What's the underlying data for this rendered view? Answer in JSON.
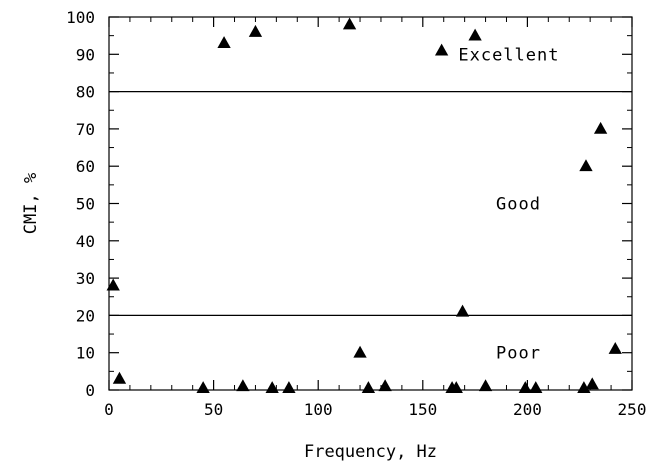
{
  "chart_data": {
    "type": "scatter",
    "title": "",
    "xlabel": "Frequency, Hz",
    "ylabel": "CMI, %",
    "xlim": [
      0,
      250
    ],
    "ylim": [
      0,
      100
    ],
    "x_ticks": [
      0,
      50,
      100,
      150,
      200,
      250
    ],
    "y_ticks": [
      0,
      10,
      20,
      30,
      40,
      50,
      60,
      70,
      80,
      90,
      100
    ],
    "x_minor_step": 10,
    "y_minor_step": 5,
    "grid": false,
    "reference_lines": [
      20,
      80
    ],
    "annotations": [
      {
        "text": "Excellent",
        "x": 167,
        "y": 90
      },
      {
        "text": "Good",
        "x": 185,
        "y": 50
      },
      {
        "text": "Poor",
        "x": 185,
        "y": 10
      }
    ],
    "marker": "triangle",
    "marker_color": "#000000",
    "points": [
      {
        "x": 2,
        "y": 28
      },
      {
        "x": 5,
        "y": 3
      },
      {
        "x": 45,
        "y": 0.5
      },
      {
        "x": 55,
        "y": 93
      },
      {
        "x": 64,
        "y": 1
      },
      {
        "x": 70,
        "y": 96
      },
      {
        "x": 78,
        "y": 0.5
      },
      {
        "x": 86,
        "y": 0.5
      },
      {
        "x": 115,
        "y": 98
      },
      {
        "x": 120,
        "y": 10
      },
      {
        "x": 124,
        "y": 0.5
      },
      {
        "x": 132,
        "y": 1
      },
      {
        "x": 159,
        "y": 91
      },
      {
        "x": 164,
        "y": 0.5
      },
      {
        "x": 166,
        "y": 0.5
      },
      {
        "x": 169,
        "y": 21
      },
      {
        "x": 175,
        "y": 95
      },
      {
        "x": 180,
        "y": 1
      },
      {
        "x": 199,
        "y": 0.5
      },
      {
        "x": 204,
        "y": 0.5
      },
      {
        "x": 227,
        "y": 0.5
      },
      {
        "x": 228,
        "y": 60
      },
      {
        "x": 231,
        "y": 1.5
      },
      {
        "x": 235,
        "y": 70
      },
      {
        "x": 242,
        "y": 11
      }
    ]
  }
}
